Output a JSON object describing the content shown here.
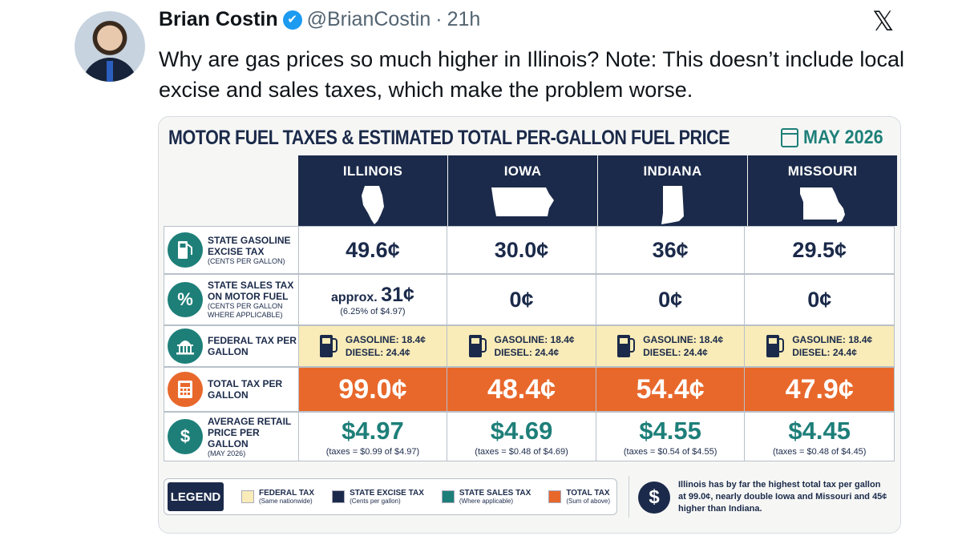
{
  "tweet": {
    "name": "Brian Costin",
    "verified_mark": "✔",
    "handle": "@BrianCostin",
    "separator": "·",
    "time": "21h",
    "x_logo": "𝕏",
    "text": "Why are gas prices so much higher in Illinois? Note: This doesn’t include local excise and sales taxes, which make the problem worse."
  },
  "infographic": {
    "title": "MOTOR FUEL TAXES & ESTIMATED TOTAL PER-GALLON FUEL PRICE",
    "date": "MAY 2026",
    "states": [
      "ILLINOIS",
      "IOWA",
      "INDIANA",
      "MISSOURI"
    ],
    "rows": {
      "excise": {
        "icon": "fuel-pump-icon",
        "label": "STATE GASOLINE EXCISE TAX",
        "sublabel": "(CENTS PER GALLON)",
        "values": [
          "49.6¢",
          "30.0¢",
          "36¢",
          "29.5¢"
        ]
      },
      "sales": {
        "icon": "percent-icon",
        "icon_glyph": "%",
        "label": "STATE SALES TAX ON MOTOR FUEL",
        "sublabel": "(CENTS PER GALLON WHERE APPLICABLE)",
        "illinois_prefix": "approx.",
        "illinois_value": "31¢",
        "illinois_note": "(6.25% of $4.97)",
        "values": [
          "31¢",
          "0¢",
          "0¢",
          "0¢"
        ]
      },
      "federal": {
        "icon": "capitol-building-icon",
        "label": "FEDERAL TAX PER GALLON",
        "gasoline": "GASOLINE: 18.4¢",
        "diesel": "DIESEL:   24.4¢"
      },
      "total": {
        "icon": "calculator-icon",
        "label": "TOTAL TAX PER GALLON",
        "values": [
          "99.0¢",
          "48.4¢",
          "54.4¢",
          "47.9¢"
        ]
      },
      "average": {
        "icon": "dollar-icon",
        "icon_glyph": "$",
        "label": "AVERAGE RETAIL PRICE PER GALLON",
        "sublabel": "(MAY 2026)",
        "values": [
          "$4.97",
          "$4.69",
          "$4.55",
          "$4.45"
        ],
        "notes": [
          "(taxes = $0.99 of $4.97)",
          "(taxes = $0.48 of $4.69)",
          "(taxes = $0.54 of $4.55)",
          "(taxes = $0.48 of $4.45)"
        ]
      }
    },
    "legend": {
      "tag": "LEGEND",
      "items": [
        {
          "label": "FEDERAL TAX",
          "sub": "(Same nationwide)",
          "color": "#f9ecb8"
        },
        {
          "label": "STATE EXCISE TAX",
          "sub": "(Cents per gallon)",
          "color": "#1b2a4a"
        },
        {
          "label": "STATE SALES TAX",
          "sub": "(Where applicable)",
          "color": "#1e7f79"
        },
        {
          "label": "TOTAL TAX",
          "sub": "(Sum of above)",
          "color": "#e8682b"
        }
      ]
    },
    "note": {
      "icon_glyph": "$",
      "text": "Illinois has by far the highest total tax per gallon at 99.0¢, nearly double Iowa and Missouri and 45¢ higher than Indiana."
    },
    "colors": {
      "navy": "#1b2a4a",
      "teal": "#1e7f79",
      "orange": "#e8682b",
      "cream": "#f9ecb8"
    }
  }
}
